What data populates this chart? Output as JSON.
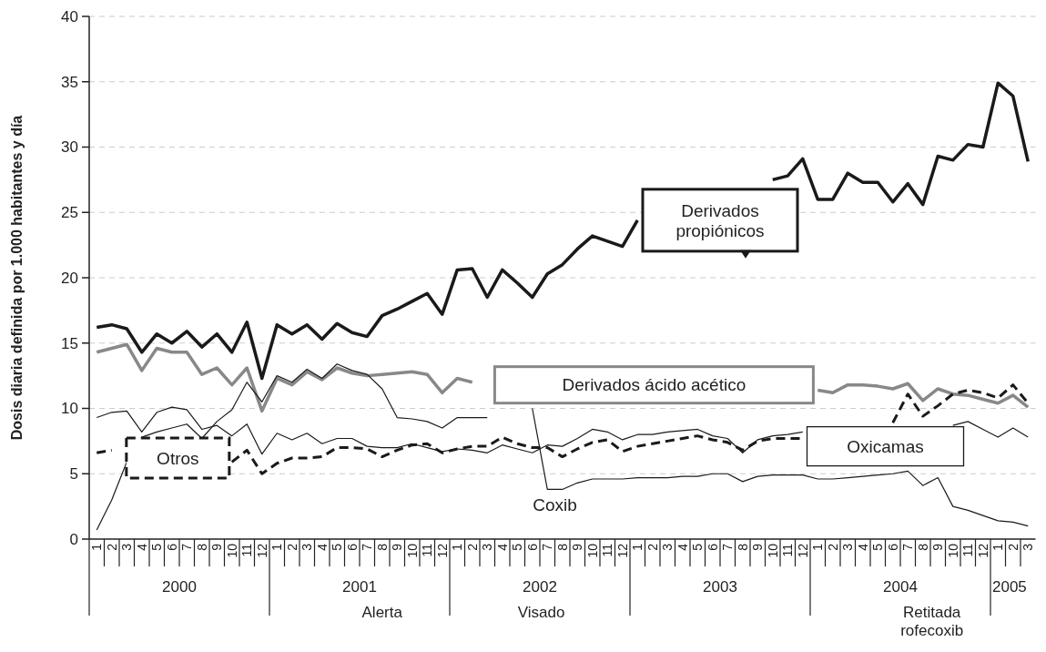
{
  "chart_data": {
    "type": "line",
    "ylabel": "Dosis diaria definida por 1.000 habitantes y día",
    "categories": [
      "1",
      "2",
      "3",
      "4",
      "5",
      "6",
      "7",
      "8",
      "9",
      "10",
      "11",
      "12",
      "1",
      "2",
      "3",
      "4",
      "5",
      "6",
      "7",
      "8",
      "9",
      "10",
      "11",
      "12",
      "1",
      "2",
      "3",
      "4",
      "5",
      "6",
      "7",
      "8",
      "9",
      "10",
      "11",
      "12",
      "1",
      "2",
      "3",
      "4",
      "5",
      "6",
      "7",
      "8",
      "9",
      "10",
      "11",
      "12",
      "1",
      "2",
      "3",
      "4",
      "5",
      "6",
      "7",
      "8",
      "9",
      "10",
      "11",
      "12",
      "1",
      "2",
      "3"
    ],
    "ylim": [
      0,
      40
    ],
    "yticks": [
      0,
      5,
      10,
      15,
      20,
      25,
      30,
      35,
      40
    ],
    "grid": "y",
    "legend": false,
    "marker": "none",
    "series": [
      {
        "name": "Derivados propiónicos",
        "color": "#1a1a1a",
        "line_style": "solid",
        "values": [
          16.2,
          16.4,
          16.1,
          14.3,
          15.7,
          15.0,
          15.9,
          14.7,
          15.7,
          14.3,
          16.6,
          12.3,
          16.4,
          15.7,
          16.4,
          15.3,
          16.5,
          15.8,
          15.5,
          17.1,
          17.6,
          18.2,
          18.8,
          17.2,
          20.6,
          20.7,
          18.5,
          20.6,
          19.6,
          18.5,
          20.3,
          21.0,
          22.2,
          23.2,
          22.8,
          22.4,
          24.4,
          null,
          null,
          null,
          null,
          null,
          null,
          null,
          null,
          27.5,
          27.8,
          29.1,
          26.0,
          26.0,
          28.0,
          27.3,
          27.3,
          25.8,
          27.2,
          25.6,
          29.3,
          29.0,
          30.2,
          30.0,
          34.9,
          33.9,
          28.9
        ]
      },
      {
        "name": "Derivados ácido acético",
        "color": "#888888",
        "line_style": "solid",
        "values": [
          14.3,
          14.6,
          14.9,
          12.9,
          14.6,
          14.3,
          14.3,
          12.6,
          13.1,
          11.8,
          13.1,
          9.8,
          12.3,
          11.8,
          12.8,
          12.2,
          13.1,
          12.7,
          12.5,
          12.6,
          12.7,
          12.8,
          12.6,
          11.2,
          12.3,
          12.0,
          null,
          null,
          null,
          null,
          null,
          null,
          null,
          null,
          null,
          null,
          null,
          null,
          null,
          null,
          null,
          null,
          null,
          null,
          null,
          null,
          null,
          null,
          11.4,
          11.2,
          11.8,
          11.8,
          11.7,
          11.5,
          11.9,
          10.6,
          11.5,
          11.1,
          11.0,
          10.7,
          10.4,
          11.0,
          10.1
        ]
      },
      {
        "name": "Coxib",
        "color": "#1a1a1a",
        "line_style": "solid",
        "values": [
          0.7,
          3.0,
          5.9,
          7.8,
          8.2,
          8.5,
          8.8,
          7.7,
          9.0,
          9.9,
          12.0,
          10.5,
          12.5,
          12.0,
          13.0,
          12.3,
          13.4,
          12.9,
          12.6,
          11.5,
          9.3,
          9.2,
          9.0,
          8.5,
          9.3,
          9.3,
          9.3,
          null,
          null,
          10.0,
          3.8,
          3.8,
          4.3,
          4.6,
          4.6,
          4.6,
          4.7,
          4.7,
          4.7,
          4.8,
          4.8,
          5.0,
          5.0,
          4.4,
          4.8,
          4.9,
          4.9,
          4.9,
          4.6,
          4.6,
          4.7,
          4.8,
          4.9,
          5.0,
          5.2,
          4.1,
          4.7,
          2.5,
          2.2,
          1.8,
          1.4,
          1.3,
          1.0
        ]
      },
      {
        "name": "Oxicamas",
        "color": "#1a1a1a",
        "line_style": "solid",
        "values": [
          9.3,
          9.7,
          9.8,
          8.2,
          9.7,
          10.1,
          9.9,
          8.4,
          8.7,
          7.9,
          8.8,
          6.5,
          8.1,
          7.6,
          8.1,
          7.3,
          7.7,
          7.7,
          7.1,
          7.0,
          7.0,
          7.3,
          7.0,
          6.7,
          6.9,
          6.8,
          6.6,
          7.2,
          6.9,
          6.6,
          7.2,
          7.1,
          7.7,
          8.4,
          8.2,
          7.6,
          8.0,
          8.0,
          8.2,
          8.3,
          8.4,
          7.9,
          7.7,
          6.6,
          7.6,
          7.9,
          8.0,
          8.2,
          null,
          null,
          null,
          null,
          null,
          null,
          null,
          null,
          null,
          8.7,
          9.0,
          8.4,
          7.8,
          8.5,
          7.8
        ]
      },
      {
        "name": "Otros",
        "color": "#1a1a1a",
        "line_style": "dashed",
        "values": [
          6.6,
          6.8,
          null,
          null,
          null,
          null,
          null,
          null,
          null,
          5.9,
          6.8,
          5.0,
          5.8,
          6.2,
          6.2,
          6.3,
          7.0,
          7.0,
          6.9,
          6.3,
          6.8,
          7.2,
          7.3,
          6.6,
          6.9,
          7.1,
          7.1,
          7.8,
          7.3,
          7.0,
          7.0,
          6.3,
          6.9,
          7.4,
          7.6,
          6.7,
          7.1,
          7.3,
          7.5,
          7.7,
          7.9,
          7.6,
          7.4,
          6.8,
          7.5,
          7.7,
          7.7,
          7.7,
          null,
          null,
          null,
          null,
          null,
          8.9,
          11.1,
          9.4,
          10.2,
          11.1,
          11.4,
          11.2,
          10.8,
          11.8,
          10.4
        ]
      }
    ],
    "annotations": [
      "2000",
      "2001",
      "2002",
      "2003",
      "2004",
      "2005",
      "Alerta",
      "Visado",
      "Retitada rofecoxib"
    ]
  }
}
